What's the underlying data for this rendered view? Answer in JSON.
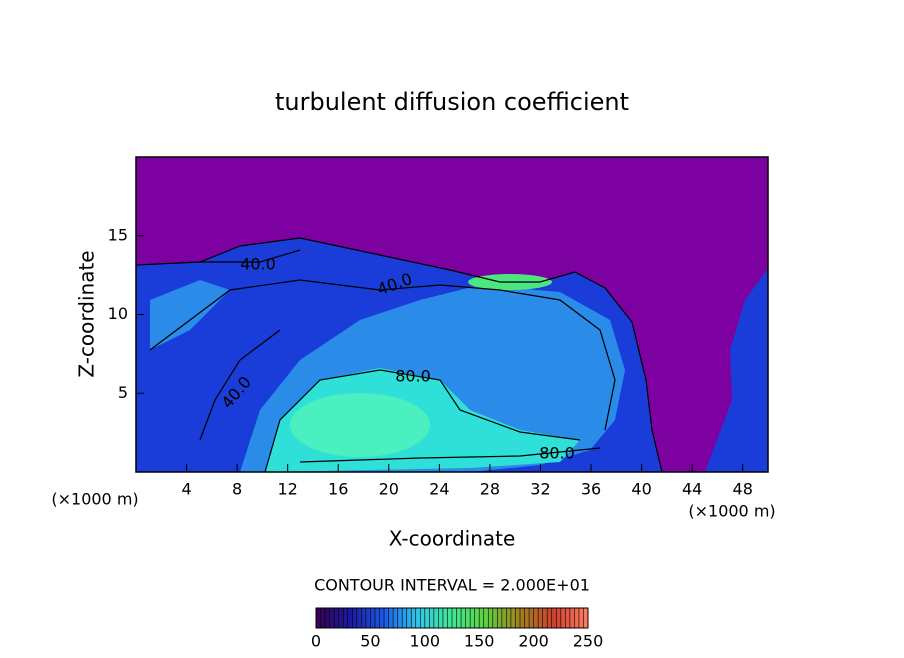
{
  "chart_data": {
    "type": "contour",
    "title": "turbulent diffusion coefficient",
    "x_label": "X-coordinate",
    "y_label": "Z-coordinate",
    "x_unit": "(×1000 m)",
    "xlim": [
      0,
      50
    ],
    "xticks": [
      4,
      8,
      12,
      16,
      20,
      24,
      28,
      32,
      36,
      40,
      44,
      48
    ],
    "ylim": [
      0,
      20
    ],
    "yticks": [
      5,
      10,
      15
    ],
    "contour_interval": "CONTOUR INTERVAL = 2.000E+01",
    "contour_labels": [
      {
        "value": 40,
        "label": "40.0"
      },
      {
        "value": 40,
        "label": "40.0"
      },
      {
        "value": 40,
        "label": "40.0"
      },
      {
        "value": 80,
        "label": "80.0"
      },
      {
        "value": 80,
        "label": "80.0"
      }
    ],
    "colorbar_lim": [
      0,
      250
    ],
    "colorbar_ticks": [
      0,
      50,
      100,
      150,
      200,
      250
    ],
    "colormap": [
      "#3a0050",
      "#1a1aa0",
      "#1e5ae8",
      "#30c8e8",
      "#40e890",
      "#60d040",
      "#a08020",
      "#d04030",
      "#ff8060"
    ]
  }
}
